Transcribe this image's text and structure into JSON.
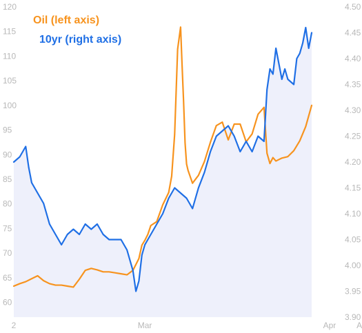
{
  "chart_data": {
    "type": "line",
    "legend": [
      {
        "label": "Oil (left axis)",
        "color": "#f7931e"
      },
      {
        "label": "10yr (right axis)",
        "color": "#1f6fe5"
      }
    ],
    "left_axis": {
      "ylim": [
        57,
        120
      ],
      "ticks": [
        "60",
        "65",
        "70",
        "75",
        "80",
        "85",
        "90",
        "95",
        "100",
        "105",
        "110",
        "115",
        "120"
      ]
    },
    "right_axis": {
      "ylim": [
        3.9,
        4.5
      ],
      "ticks": [
        "3.90",
        "3.95",
        "4.00",
        "4.05",
        "4.10",
        "4.15",
        "4.20",
        "4.25",
        "4.30",
        "4.35",
        "4.40",
        "4.45",
        "4.50"
      ]
    },
    "x_ticks": [
      {
        "label": "2",
        "pos": 0
      },
      {
        "label": "Mar",
        "pos": 0.44
      },
      {
        "label": "Apr",
        "pos": 1.06
      },
      {
        "label": "A",
        "pos": 1.16
      }
    ],
    "series": [
      {
        "name": "Oil (left axis)",
        "axis": "left",
        "color": "#f7931e",
        "x": [
          0,
          0.02,
          0.04,
          0.06,
          0.08,
          0.1,
          0.12,
          0.14,
          0.16,
          0.18,
          0.2,
          0.22,
          0.24,
          0.26,
          0.28,
          0.3,
          0.32,
          0.34,
          0.36,
          0.38,
          0.4,
          0.42,
          0.43,
          0.44,
          0.45,
          0.46,
          0.48,
          0.5,
          0.52,
          0.53,
          0.54,
          0.55,
          0.56,
          0.565,
          0.57,
          0.575,
          0.58,
          0.585,
          0.6,
          0.62,
          0.64,
          0.66,
          0.68,
          0.7,
          0.72,
          0.74,
          0.76,
          0.78,
          0.8,
          0.82,
          0.84,
          0.85,
          0.86,
          0.87,
          0.88,
          0.9,
          0.92,
          0.94,
          0.96,
          0.98,
          1.0
        ],
        "values": [
          63.3,
          63.8,
          64.2,
          64.8,
          65.4,
          64.4,
          63.8,
          63.5,
          63.5,
          63.3,
          63.1,
          64.7,
          66.5,
          66.9,
          66.6,
          66.2,
          66.2,
          66.0,
          65.8,
          65.6,
          66.5,
          68.9,
          71.6,
          72.6,
          73.8,
          75.6,
          76.4,
          79.8,
          82.3,
          85.6,
          94.1,
          111.4,
          115.9,
          108.1,
          100.8,
          92.4,
          88.1,
          86.8,
          84.2,
          85.8,
          88.6,
          92.5,
          95.9,
          96.6,
          93.0,
          96.2,
          96.2,
          92.6,
          94.2,
          98.2,
          99.6,
          90.3,
          88.2,
          89.4,
          88.7,
          89.3,
          89.6,
          90.8,
          92.8,
          95.7,
          100.0
        ]
      },
      {
        "name": "10yr (right axis)",
        "axis": "right",
        "color": "#1f6fe5",
        "x": [
          0,
          0.02,
          0.03,
          0.04,
          0.05,
          0.06,
          0.08,
          0.1,
          0.12,
          0.14,
          0.16,
          0.18,
          0.2,
          0.22,
          0.24,
          0.26,
          0.28,
          0.3,
          0.32,
          0.34,
          0.36,
          0.38,
          0.4,
          0.41,
          0.42,
          0.43,
          0.44,
          0.46,
          0.48,
          0.5,
          0.52,
          0.54,
          0.56,
          0.58,
          0.6,
          0.62,
          0.64,
          0.66,
          0.68,
          0.7,
          0.72,
          0.74,
          0.76,
          0.78,
          0.8,
          0.82,
          0.84,
          0.85,
          0.86,
          0.87,
          0.88,
          0.89,
          0.9,
          0.91,
          0.92,
          0.94,
          0.95,
          0.96,
          0.97,
          0.98,
          0.99,
          1.0
        ],
        "values": [
          4.2,
          4.21,
          4.22,
          4.23,
          4.19,
          4.16,
          4.14,
          4.12,
          4.08,
          4.06,
          4.04,
          4.06,
          4.07,
          4.06,
          4.08,
          4.07,
          4.08,
          4.06,
          4.05,
          4.05,
          4.05,
          4.03,
          3.99,
          3.95,
          3.97,
          4.02,
          4.04,
          4.06,
          4.08,
          4.1,
          4.13,
          4.15,
          4.14,
          4.13,
          4.11,
          4.15,
          4.18,
          4.22,
          4.25,
          4.26,
          4.27,
          4.25,
          4.22,
          4.24,
          4.22,
          4.25,
          4.24,
          4.34,
          4.38,
          4.37,
          4.42,
          4.39,
          4.36,
          4.38,
          4.36,
          4.35,
          4.4,
          4.41,
          4.43,
          4.46,
          4.42,
          4.45
        ]
      }
    ],
    "grid": false,
    "legend_position": "top-left"
  }
}
